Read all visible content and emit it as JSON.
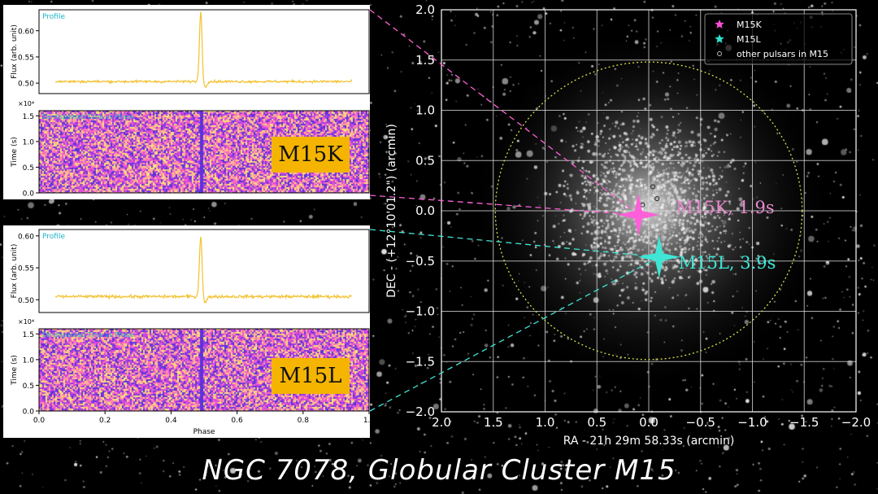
{
  "caption": "NGC 7078, Globular Cluster M15",
  "chart_data": [
    {
      "type": "line",
      "id": "m15k_profile",
      "title": "Profile",
      "ylabel": "Flux (arb. unit)",
      "xlim": [
        0.0,
        1.0
      ],
      "ylim": [
        0.48,
        0.64
      ],
      "yticks": [
        "0.60",
        "0.55",
        "0.50"
      ],
      "ytick_values": [
        0.6,
        0.55,
        0.5
      ],
      "baseline": 0.503,
      "peak_phase": 0.49,
      "peak_value": 0.635,
      "phase_range": [
        0.05,
        0.95
      ],
      "color": "#f2c12e"
    },
    {
      "type": "heatmap",
      "id": "m15k_timephase",
      "title": "De-dispersed Time vs Phase",
      "ylabel": "Time (s)",
      "scale_label": "×10⁴",
      "yticks": [
        "1.5",
        "1.0",
        "0.5",
        "0.0"
      ],
      "ytick_values": [
        1.5,
        1.0,
        0.5,
        0.0
      ],
      "ylim": [
        0.0,
        1.6
      ],
      "pulse_phase": 0.49,
      "source_label": "M15K"
    },
    {
      "type": "line",
      "id": "m15l_profile",
      "title": "Profile",
      "ylabel": "Flux (arb. unit)",
      "xlim": [
        0.0,
        1.0
      ],
      "ylim": [
        0.48,
        0.61
      ],
      "yticks": [
        "0.60",
        "0.55",
        "0.50"
      ],
      "ytick_values": [
        0.6,
        0.55,
        0.5
      ],
      "baseline": 0.505,
      "peak_phase": 0.49,
      "peak_value": 0.6,
      "phase_range": [
        0.05,
        0.95
      ],
      "color": "#f2c12e"
    },
    {
      "type": "heatmap",
      "id": "m15l_timephase",
      "title": "De-dispersed Time vs Phase",
      "ylabel": "Time (s)",
      "scale_label": "×10⁴",
      "xlabel": "Phase",
      "xticks": [
        "0.0",
        "0.2",
        "0.4",
        "0.6",
        "0.8",
        "1.0"
      ],
      "xtick_values": [
        0.0,
        0.2,
        0.4,
        0.6,
        0.8,
        1.0
      ],
      "yticks": [
        "1.5",
        "1.0",
        "0.5",
        "0.0"
      ],
      "ytick_values": [
        1.5,
        1.0,
        0.5,
        0.0
      ],
      "ylim": [
        0.0,
        1.6
      ],
      "pulse_phase": 0.49,
      "source_label": "M15L"
    },
    {
      "type": "scatter",
      "id": "sky_map",
      "xlabel": "RA - 21h 29m 58.33s (arcmin)",
      "ylabel": "DEC - (+12°10'01.2\") (arcmin)",
      "xlim": [
        2.0,
        -2.0
      ],
      "ylim": [
        -2.0,
        2.0
      ],
      "xticks": [
        "2.0",
        "1.5",
        "1.0",
        "0.5",
        "0.0",
        "−0.5",
        "−1.0",
        "−1.5",
        "−2.0"
      ],
      "xtick_values": [
        2.0,
        1.5,
        1.0,
        0.5,
        0.0,
        -0.5,
        -1.0,
        -1.5,
        -2.0
      ],
      "yticks": [
        "2.0",
        "1.5",
        "1.0",
        "0.5",
        "0.0",
        "−0.5",
        "−1.0",
        "−1.5",
        "−2.0"
      ],
      "ytick_values": [
        2.0,
        1.5,
        1.0,
        0.5,
        0.0,
        -0.5,
        -1.0,
        -1.5,
        -2.0
      ],
      "grid": true,
      "circle_radius": 1.48,
      "legend_placement": "top-right",
      "legend": [
        {
          "label": "M15K",
          "marker": "star",
          "color": "#ff4fd8"
        },
        {
          "label": "M15L",
          "marker": "star",
          "color": "#2fe0d0"
        },
        {
          "label": "other pulsars in M15",
          "marker": "circle",
          "color": "#bbbbbb"
        }
      ],
      "pulsars": [
        {
          "name": "M15K",
          "x": 0.1,
          "y": -0.04,
          "annotation": "M15K, 1.9s",
          "color": "#ff5fd8",
          "text_color": "#e98ad0"
        },
        {
          "name": "M15L",
          "x": -0.1,
          "y": -0.46,
          "annotation": "M15L, 3.9s",
          "color": "#3fe6d6",
          "text_color": "#3fe6d6"
        }
      ],
      "other_pulsars": [
        {
          "x": -0.04,
          "y": 0.24
        },
        {
          "x": -0.08,
          "y": 0.12
        },
        {
          "x": 0.06,
          "y": 0.06
        }
      ]
    }
  ]
}
